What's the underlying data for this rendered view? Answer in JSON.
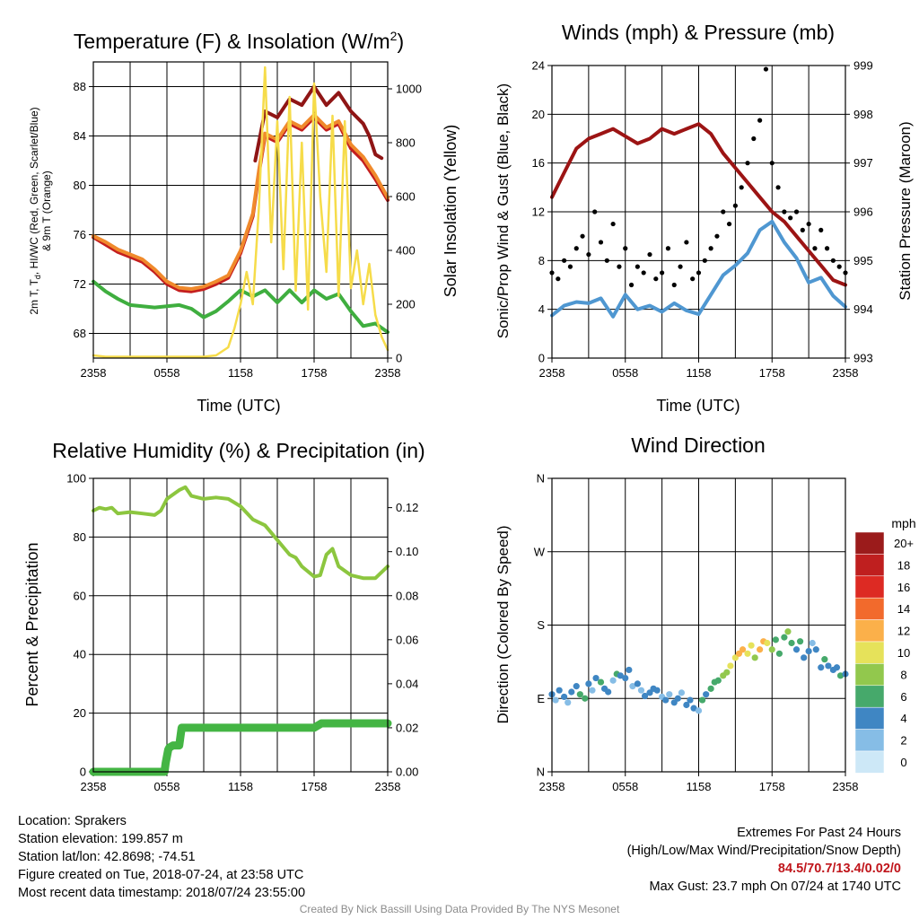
{
  "panels": {
    "temperature": {
      "title": "Temperature (F) & Insolation (W/m",
      "title_sup": "2",
      "title_end": ")",
      "left_label_line1": "2m T, T",
      "left_label_sub": "d",
      "left_label_line1b": ", HI/WC (Red, Green, Scarlet/Blue)",
      "left_label_line2": "& 9m T (Orange)",
      "right_label": "Solar Insolation (Yellow)",
      "x_label": "Time (UTC)"
    },
    "winds": {
      "title": "Winds (mph) & Pressure (mb)",
      "left_label": "Sonic/Prop Wind & Gust (Blue, Black)",
      "right_label": "Station Pressure (Maroon)",
      "x_label": "Time (UTC)"
    },
    "humidity": {
      "title": "Relative Humidity (%) & Precipitation (in)",
      "left_label": "Percent & Precipitation"
    },
    "direction": {
      "title": "Wind Direction",
      "left_label": "Direction (Colored By Speed)",
      "legend_title": "mph"
    }
  },
  "chart_data": [
    {
      "id": "temperature",
      "type": "line",
      "title": "Temperature (F) & Insolation (W/m2)",
      "xlabel": "Time (UTC)",
      "ylabel": "2m T, Td, HI/WC (Red, Green, Scarlet/Blue) & 9m T (Orange)",
      "y2label": "Solar Insolation (Yellow)",
      "x_ticks": [
        "2358",
        "0558",
        "1158",
        "1758",
        "2358"
      ],
      "x_range_hours": [
        0,
        24
      ],
      "ylim": [
        66,
        90
      ],
      "y_ticks": [
        "68",
        "72",
        "76",
        "80",
        "84",
        "88"
      ],
      "y2lim": [
        0,
        1100
      ],
      "y2_ticks": [
        "0",
        "200",
        "400",
        "600",
        "800",
        "1000"
      ],
      "series": [
        {
          "name": "2m T",
          "color": "#c41e1e",
          "axis": "left",
          "x": [
            0,
            1,
            2,
            3,
            4,
            5,
            6,
            7,
            8,
            9,
            10,
            11,
            12,
            13,
            13.5,
            14,
            15,
            16,
            17,
            18,
            19,
            20,
            21,
            22,
            23,
            24
          ],
          "y": [
            75.8,
            75.2,
            74.6,
            74.2,
            73.8,
            73.0,
            72.0,
            71.5,
            71.4,
            71.6,
            72.0,
            72.5,
            74.5,
            77.5,
            81,
            84,
            83.5,
            85,
            84.5,
            85.5,
            84.5,
            85,
            83,
            82,
            80.5,
            78.8
          ]
        },
        {
          "name": "9m T",
          "color": "#f08a2c",
          "axis": "left",
          "x": [
            0,
            1,
            2,
            3,
            4,
            5,
            6,
            7,
            8,
            9,
            10,
            11,
            12,
            13,
            13.5,
            14,
            15,
            16,
            17,
            18,
            19,
            20,
            21,
            22,
            23,
            24
          ],
          "y": [
            75.9,
            75.4,
            74.8,
            74.4,
            74.0,
            73.2,
            72.2,
            71.7,
            71.6,
            71.8,
            72.2,
            72.7,
            74.7,
            77.7,
            81.2,
            84.2,
            83.7,
            85.2,
            84.7,
            85.7,
            84.7,
            85.2,
            83.3,
            82.3,
            80.8,
            79.0
          ]
        },
        {
          "name": "Heat Index",
          "color": "#8f1515",
          "axis": "left",
          "x": [
            13.2,
            14,
            15,
            16,
            17,
            18,
            19,
            20,
            21,
            22,
            22.5,
            23,
            23.5
          ],
          "y": [
            82,
            86,
            85.5,
            87,
            86.5,
            88,
            86.5,
            87.5,
            86,
            85,
            84,
            82.5,
            82.2
          ]
        },
        {
          "name": "Dewpoint",
          "color": "#3fae3f",
          "axis": "left",
          "x": [
            0,
            1,
            2,
            3,
            4,
            5,
            6,
            7,
            8,
            9,
            10,
            11,
            12,
            13,
            14,
            15,
            16,
            17,
            18,
            19,
            20,
            21,
            22,
            23,
            24
          ],
          "y": [
            72.2,
            71.4,
            70.8,
            70.3,
            70.2,
            70.1,
            70.2,
            70.3,
            70.0,
            69.3,
            69.8,
            70.6,
            71.5,
            71.0,
            71.5,
            70.5,
            71.5,
            70.5,
            71.5,
            70.8,
            71.2,
            69.8,
            68.6,
            68.8,
            68.1
          ]
        },
        {
          "name": "Solar Insolation",
          "color": "#f6dc4a",
          "axis": "right",
          "x": [
            0,
            1,
            2,
            3,
            4,
            5,
            6,
            7,
            8,
            9,
            10,
            11,
            11.5,
            12,
            12.5,
            13,
            13.5,
            14,
            14.5,
            15,
            15.5,
            16,
            16.5,
            17,
            17.5,
            18,
            18.5,
            19,
            19.5,
            20,
            20.5,
            21,
            21.5,
            22,
            22.5,
            23,
            23.5,
            24
          ],
          "y": [
            10,
            5,
            5,
            5,
            5,
            5,
            5,
            5,
            5,
            5,
            10,
            40,
            110,
            200,
            320,
            200,
            560,
            1080,
            430,
            880,
            330,
            970,
            250,
            800,
            180,
            1020,
            600,
            320,
            900,
            230,
            880,
            260,
            400,
            200,
            350,
            160,
            80,
            30
          ]
        }
      ]
    },
    {
      "id": "winds",
      "type": "line",
      "title": "Winds (mph) & Pressure (mb)",
      "xlabel": "Time (UTC)",
      "ylabel": "Sonic/Prop Wind & Gust (Blue, Black)",
      "y2label": "Station Pressure (Maroon)",
      "x_ticks": [
        "2358",
        "0558",
        "1158",
        "1758",
        "2358"
      ],
      "x_range_hours": [
        0,
        24
      ],
      "ylim": [
        0,
        24
      ],
      "y_ticks": [
        "0",
        "4",
        "8",
        "12",
        "16",
        "20",
        "24"
      ],
      "y2lim": [
        993,
        999
      ],
      "y2_ticks": [
        "993",
        "994",
        "995",
        "996",
        "997",
        "998",
        "999"
      ],
      "series": [
        {
          "name": "Wind",
          "color": "#4f97d1",
          "axis": "left",
          "x": [
            0,
            1,
            2,
            3,
            4,
            5,
            6,
            7,
            8,
            9,
            10,
            11,
            12,
            13,
            14,
            15,
            16,
            17,
            18,
            19,
            20,
            21,
            22,
            23,
            24
          ],
          "y": [
            3.5,
            4.3,
            4.6,
            4.5,
            4.9,
            3.4,
            5.2,
            4.0,
            4.3,
            3.8,
            4.5,
            3.9,
            3.6,
            5.2,
            6.8,
            7.6,
            8.6,
            10.5,
            11.2,
            9.5,
            8.2,
            6.2,
            6.6,
            5.1,
            4.2
          ]
        },
        {
          "name": "Gust",
          "color": "#000000",
          "axis": "left",
          "style": "dots",
          "x": [
            0,
            0.5,
            1,
            1.5,
            2,
            2.5,
            3,
            3.5,
            4,
            4.5,
            5,
            5.5,
            6,
            6.5,
            7,
            7.5,
            8,
            8.5,
            9,
            9.5,
            10,
            10.5,
            11,
            11.5,
            12,
            12.5,
            13,
            13.5,
            14,
            14.5,
            15,
            15.5,
            16,
            16.5,
            17,
            17.5,
            18,
            18.5,
            19,
            19.5,
            20,
            20.5,
            21,
            21.5,
            22,
            22.5,
            23,
            23.5,
            24
          ],
          "y": [
            7,
            6.5,
            8,
            7.5,
            9,
            10,
            8.5,
            12,
            9.5,
            8,
            11,
            7.5,
            9,
            6,
            7.5,
            7,
            8.5,
            6.5,
            7,
            9,
            6,
            7.5,
            9.5,
            6.5,
            7,
            8,
            9,
            10,
            12,
            11,
            12.5,
            14,
            16,
            18,
            19.5,
            23.7,
            16,
            14,
            12,
            11.5,
            12,
            10.5,
            11,
            9,
            10.5,
            9,
            8,
            7.5,
            7
          ]
        },
        {
          "name": "Station Pressure",
          "color": "#9c1414",
          "axis": "right",
          "x": [
            0,
            1,
            2,
            3,
            4,
            5,
            6,
            7,
            8,
            9,
            10,
            11,
            12,
            13,
            14,
            15,
            16,
            17,
            18,
            19,
            20,
            21,
            22,
            23,
            24
          ],
          "y": [
            996.3,
            996.8,
            997.3,
            997.5,
            997.6,
            997.7,
            997.55,
            997.4,
            997.5,
            997.7,
            997.6,
            997.7,
            997.8,
            997.6,
            997.2,
            996.9,
            996.6,
            996.3,
            996.0,
            995.8,
            995.5,
            995.2,
            994.9,
            994.6,
            994.5
          ]
        }
      ]
    },
    {
      "id": "humidity",
      "type": "line",
      "title": "Relative Humidity (%) & Precipitation (in)",
      "ylabel": "Percent & Precipitation",
      "x_ticks": [
        "2358",
        "0558",
        "1158",
        "1758",
        "2358"
      ],
      "x_range_hours": [
        0,
        24
      ],
      "ylim": [
        0,
        100
      ],
      "y_ticks": [
        "0",
        "20",
        "40",
        "60",
        "80",
        "100"
      ],
      "y2lim": [
        0,
        0.1333
      ],
      "y2_ticks": [
        "0.00",
        "0.02",
        "0.04",
        "0.06",
        "0.08",
        "0.10",
        "0.12"
      ],
      "series": [
        {
          "name": "Relative Humidity",
          "color": "#8cc63f",
          "axis": "left",
          "x": [
            0,
            0.5,
            1,
            1.5,
            2,
            3,
            4,
            5,
            5.5,
            6,
            7,
            7.5,
            8,
            9,
            10,
            11,
            12,
            13,
            14,
            15,
            16,
            16.5,
            17,
            18,
            18.5,
            19,
            19.5,
            20,
            21,
            22,
            23,
            24
          ],
          "y": [
            89,
            90,
            89.5,
            90,
            88,
            88.5,
            88,
            87.5,
            89,
            93,
            96,
            97,
            94,
            93,
            93.5,
            93,
            90.5,
            86,
            84,
            79,
            74,
            73,
            70,
            66.5,
            67,
            74,
            76,
            70,
            67,
            66,
            66,
            70
          ]
        },
        {
          "name": "Precipitation",
          "color": "#44b544",
          "axis": "right",
          "x": [
            0,
            5.8,
            5.9,
            6.1,
            6.2,
            6.5,
            7.0,
            7.2,
            18.0,
            18.6,
            24
          ],
          "y": [
            0,
            0,
            0.004,
            0.01,
            0.011,
            0.012,
            0.012,
            0.02,
            0.02,
            0.022,
            0.022
          ]
        }
      ]
    },
    {
      "id": "direction",
      "type": "scatter",
      "title": "Wind Direction",
      "ylabel": "Direction (Colored By Speed)",
      "x_ticks": [
        "2358",
        "0558",
        "1158",
        "1758",
        "2358"
      ],
      "x_range_hours": [
        0,
        24
      ],
      "ylim": [
        0,
        360
      ],
      "y_ticks": [
        "N",
        "E",
        "S",
        "W",
        "N"
      ],
      "colorbar": {
        "title": "mph",
        "labels": [
          "20+",
          "18",
          "16",
          "14",
          "12",
          "10",
          "8",
          "6",
          "4",
          "2",
          "0"
        ],
        "colors": [
          "#9b1b1b",
          "#bf1f1f",
          "#dd2a23",
          "#f26a2c",
          "#fbb04a",
          "#e6e25a",
          "#92c84d",
          "#46a96b",
          "#3f86c3",
          "#86bde6",
          "#cde8f7"
        ]
      },
      "points": {
        "x": [
          0,
          0.3,
          0.6,
          1,
          1.3,
          1.6,
          2,
          2.3,
          2.7,
          3,
          3.3,
          3.6,
          4,
          4.3,
          4.6,
          5,
          5.3,
          5.6,
          6,
          6.3,
          6.6,
          7,
          7.3,
          7.6,
          8,
          8.3,
          8.6,
          9,
          9.3,
          9.6,
          10,
          10.3,
          10.6,
          11,
          11.3,
          11.6,
          12,
          12.3,
          12.6,
          13,
          13.3,
          13.6,
          14,
          14.3,
          14.6,
          15,
          15.3,
          15.6,
          16,
          16.3,
          16.6,
          17,
          17.3,
          17.6,
          18,
          18.3,
          18.6,
          19,
          19.3,
          19.6,
          20,
          20.3,
          20.6,
          21,
          21.3,
          21.6,
          22,
          22.3,
          22.6,
          23,
          23.3,
          23.6,
          24
        ],
        "y": [
          95,
          88,
          100,
          92,
          85,
          98,
          105,
          95,
          90,
          108,
          100,
          115,
          110,
          102,
          98,
          112,
          120,
          118,
          115,
          125,
          105,
          108,
          100,
          93,
          97,
          102,
          100,
          92,
          88,
          95,
          85,
          90,
          97,
          82,
          88,
          78,
          75,
          88,
          95,
          102,
          110,
          112,
          118,
          122,
          130,
          140,
          145,
          150,
          145,
          155,
          140,
          150,
          160,
          158,
          150,
          162,
          145,
          165,
          172,
          158,
          150,
          160,
          140,
          148,
          158,
          150,
          128,
          138,
          130,
          125,
          128,
          118,
          120
        ],
        "speed": [
          3,
          2,
          4,
          3,
          2,
          3,
          4,
          5,
          6,
          3,
          2,
          4,
          5,
          4,
          3,
          2,
          5,
          4,
          3,
          4,
          2,
          3,
          2,
          3,
          3,
          4,
          3,
          2,
          3,
          2,
          4,
          3,
          2,
          3,
          4,
          3,
          2,
          5,
          4,
          6,
          5,
          6,
          7,
          8,
          9,
          10,
          11,
          12,
          10,
          9,
          8,
          11,
          12,
          9,
          7,
          6,
          5,
          6,
          7,
          5,
          4,
          5,
          3,
          4,
          2,
          3,
          4,
          5,
          4,
          3,
          4,
          5,
          4
        ]
      }
    }
  ],
  "footer": {
    "location": "Location: Sprakers",
    "elevation": "Station elevation: 199.857 m",
    "latlon": "Station lat/lon: 42.8698; -74.51",
    "created": "Figure created on Tue, 2018-07-24, at 23:58 UTC",
    "recent": "Most recent data timestamp: 2018/07/24 23:55:00",
    "extremes_title": "Extremes For Past 24 Hours",
    "extremes_subtitle": "(High/Low/Max Wind/Precipitation/Snow Depth)",
    "extremes_values": "84.5/70.7/13.4/0.02/0",
    "max_gust": "Max Gust: 23.7 mph On 07/24 at 1740 UTC",
    "credit": "Created By Nick Bassill Using Data Provided By The NYS Mesonet"
  }
}
